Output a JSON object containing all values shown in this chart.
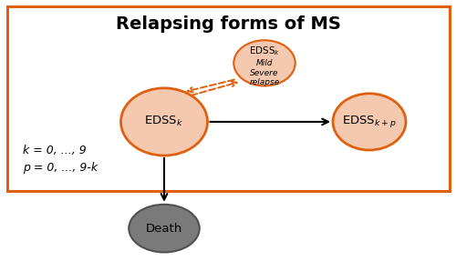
{
  "title": "Relapsing forms of MS",
  "title_fontsize": 14,
  "background_color": "#ffffff",
  "border_color": "#e06010",
  "node_edss_k_color": "#f5c8b0",
  "node_edss_k_edgecolor": "#e06010",
  "node_relapse_color": "#f5c8b0",
  "node_relapse_edgecolor": "#e06010",
  "node_edsskp_color": "#f5c8b0",
  "node_edsskp_edgecolor": "#e06010",
  "node_death_color": "#7a7a7a",
  "node_death_edgecolor": "#505050",
  "label_k_text_line1": "k = 0, ..., 9",
  "label_k_text_line2": "p = 0, ..., 9-k",
  "italic_lines": [
    "Mild",
    "Severe",
    "relapse"
  ],
  "arrow_color": "#000000",
  "dashed_arrow_color": "#e06010"
}
